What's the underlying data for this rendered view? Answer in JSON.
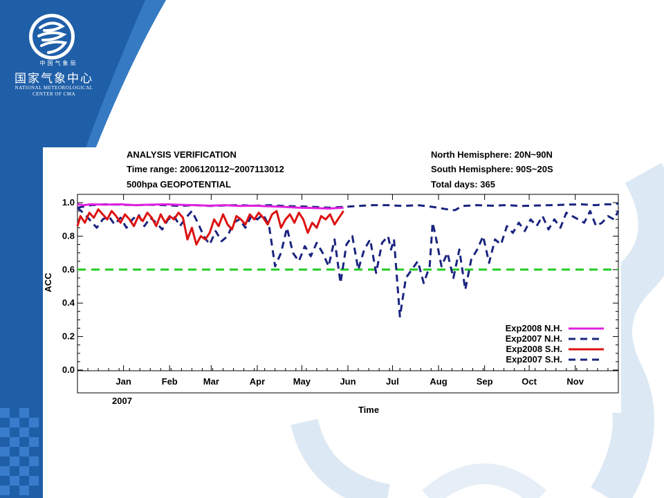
{
  "branding": {
    "org_small": "中国气象局",
    "org_name": "国家气象中心",
    "org_en_line1": "NATIONAL METEOROLOGICAL",
    "org_en_line2": "CENTER OF CMA"
  },
  "colors": {
    "slide_blue": "#1f5fa8",
    "nh_2008": "#e020e0",
    "nh_2007": "#1a237e",
    "sh_2008": "#dd1111",
    "sh_2007": "#1a237e",
    "reference_line": "#22cc22"
  },
  "chart_data": {
    "type": "line",
    "header": {
      "left": [
        "ANALYSIS VERIFICATION",
        "Time range: 2006120112~2007113012",
        "500hpa   GEOPOTENTIAL"
      ],
      "right": [
        "North Hemisphere: 20N~90N",
        "South Hemisphere: 90S~20S",
        "Total days: 365"
      ]
    },
    "xlabel": "Time",
    "ylabel": "ACC",
    "year_label": "2007",
    "x_unit": "day of period (day 1 = 2006-12-01)",
    "xlim": [
      1,
      365
    ],
    "ylim": [
      0.0,
      1.0
    ],
    "yticks": [
      "0.0",
      "0.2",
      "0.4",
      "0.6",
      "0.8",
      "1.0"
    ],
    "months": [
      {
        "label": "Jan",
        "day": 32
      },
      {
        "label": "Feb",
        "day": 63
      },
      {
        "label": "Mar",
        "day": 91
      },
      {
        "label": "Apr",
        "day": 122
      },
      {
        "label": "May",
        "day": 152
      },
      {
        "label": "Jun",
        "day": 183
      },
      {
        "label": "Jul",
        "day": 213
      },
      {
        "label": "Aug",
        "day": 244
      },
      {
        "label": "Sep",
        "day": 275
      },
      {
        "label": "Oct",
        "day": 305
      },
      {
        "label": "Nov",
        "day": 336
      }
    ],
    "reference_line": {
      "y": 0.6,
      "style": "dashed"
    },
    "legend_position": "bottom-right",
    "series": [
      {
        "name": "Exp2008 N.H.",
        "style": "solid",
        "x": [
          1,
          5,
          10,
          20,
          30,
          40,
          50,
          60,
          70,
          80,
          90,
          100,
          110,
          120,
          130,
          140,
          150,
          160,
          170,
          180
        ],
        "y": [
          0.99,
          0.985,
          0.99,
          0.988,
          0.99,
          0.985,
          0.988,
          0.99,
          0.987,
          0.985,
          0.982,
          0.985,
          0.98,
          0.982,
          0.978,
          0.975,
          0.97,
          0.968,
          0.965,
          0.97
        ]
      },
      {
        "name": "Exp2007 N.H.",
        "style": "dashed",
        "x": [
          1,
          10,
          20,
          30,
          40,
          50,
          60,
          70,
          80,
          90,
          100,
          110,
          120,
          130,
          140,
          150,
          160,
          170,
          180,
          190,
          200,
          210,
          220,
          230,
          240,
          250,
          255,
          260,
          270,
          280,
          290,
          300,
          310,
          320,
          330,
          340,
          350,
          355,
          360,
          365
        ],
        "y": [
          0.97,
          0.985,
          0.99,
          0.988,
          0.985,
          0.987,
          0.985,
          0.98,
          0.985,
          0.98,
          0.983,
          0.985,
          0.982,
          0.985,
          0.98,
          0.978,
          0.975,
          0.97,
          0.975,
          0.98,
          0.985,
          0.985,
          0.98,
          0.985,
          0.975,
          0.96,
          0.955,
          0.98,
          0.985,
          0.982,
          0.985,
          0.98,
          0.983,
          0.985,
          0.988,
          0.99,
          0.985,
          0.99,
          0.99,
          0.995
        ]
      },
      {
        "name": "Exp2008 S.H.",
        "style": "solid",
        "x": [
          1,
          3,
          6,
          9,
          12,
          15,
          18,
          21,
          24,
          27,
          30,
          33,
          36,
          39,
          42,
          45,
          48,
          51,
          54,
          57,
          60,
          63,
          66,
          69,
          72,
          75,
          78,
          81,
          84,
          87,
          90,
          93,
          96,
          99,
          102,
          105,
          108,
          111,
          114,
          117,
          120,
          123,
          126,
          129,
          132,
          135,
          138,
          141,
          144,
          147,
          150,
          153,
          156,
          159,
          162,
          165,
          168,
          171,
          174,
          177,
          180
        ],
        "y": [
          0.86,
          0.92,
          0.88,
          0.94,
          0.91,
          0.96,
          0.93,
          0.9,
          0.95,
          0.92,
          0.88,
          0.93,
          0.9,
          0.86,
          0.92,
          0.89,
          0.94,
          0.91,
          0.86,
          0.93,
          0.88,
          0.92,
          0.9,
          0.94,
          0.91,
          0.78,
          0.85,
          0.75,
          0.8,
          0.78,
          0.82,
          0.9,
          0.86,
          0.93,
          0.87,
          0.84,
          0.92,
          0.9,
          0.87,
          0.93,
          0.9,
          0.94,
          0.91,
          0.87,
          0.93,
          0.95,
          0.85,
          0.9,
          0.93,
          0.88,
          0.94,
          0.9,
          0.82,
          0.88,
          0.85,
          0.92,
          0.9,
          0.93,
          0.87,
          0.91,
          0.95
        ]
      },
      {
        "name": "Exp2007 S.H.",
        "style": "dashed",
        "x": [
          1,
          6,
          10,
          14,
          18,
          22,
          26,
          30,
          34,
          38,
          42,
          46,
          50,
          54,
          58,
          62,
          66,
          70,
          74,
          78,
          82,
          86,
          90,
          94,
          98,
          102,
          106,
          110,
          114,
          118,
          122,
          126,
          130,
          134,
          138,
          142,
          146,
          150,
          154,
          158,
          162,
          166,
          170,
          174,
          178,
          182,
          186,
          190,
          194,
          198,
          202,
          206,
          210,
          212,
          214,
          218,
          222,
          226,
          230,
          234,
          238,
          240,
          242,
          246,
          250,
          254,
          258,
          262,
          266,
          270,
          274,
          278,
          282,
          286,
          290,
          294,
          298,
          302,
          306,
          310,
          314,
          318,
          322,
          326,
          330,
          334,
          338,
          342,
          346,
          350,
          354,
          358,
          362,
          365
        ],
        "y": [
          0.97,
          0.93,
          0.89,
          0.85,
          0.9,
          0.92,
          0.87,
          0.91,
          0.85,
          0.9,
          0.93,
          0.86,
          0.91,
          0.88,
          0.84,
          0.9,
          0.92,
          0.86,
          0.91,
          0.95,
          0.88,
          0.8,
          0.75,
          0.83,
          0.77,
          0.8,
          0.88,
          0.9,
          0.85,
          0.92,
          0.9,
          0.93,
          0.86,
          0.62,
          0.7,
          0.85,
          0.7,
          0.65,
          0.74,
          0.68,
          0.76,
          0.7,
          0.62,
          0.78,
          0.52,
          0.75,
          0.8,
          0.6,
          0.72,
          0.78,
          0.58,
          0.76,
          0.8,
          0.72,
          0.78,
          0.32,
          0.55,
          0.6,
          0.65,
          0.52,
          0.62,
          0.88,
          0.8,
          0.62,
          0.7,
          0.55,
          0.72,
          0.48,
          0.66,
          0.72,
          0.8,
          0.64,
          0.78,
          0.75,
          0.86,
          0.82,
          0.88,
          0.83,
          0.9,
          0.86,
          0.92,
          0.84,
          0.9,
          0.85,
          0.94,
          0.92,
          0.9,
          0.88,
          0.95,
          0.86,
          0.88,
          0.92,
          0.9,
          0.95
        ]
      }
    ]
  }
}
